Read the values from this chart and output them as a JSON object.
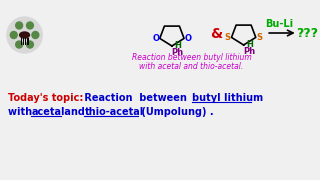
{
  "bg_color": "#f0f0f0",
  "title_color_red": "#cc0000",
  "title_color_blue": "#0000cc",
  "green_color": "#00aa00",
  "atom_O_color": "#0000ff",
  "atom_S_color": "#cc6600",
  "atom_H_color": "#006600",
  "atom_Ph_color": "#800080",
  "subtitle_color": "#cc00cc",
  "ampersand_color": "#cc0000",
  "subtitle_line1": "Reaction between butyl lithium",
  "subtitle_line2": "with acetal and thio-acetal.",
  "todays_topic": "Today's topic:",
  "reaction_between": " Reaction  between  ",
  "butyl_lithium": "butyl lithium",
  "with_text": "with ",
  "acetal_text": "acetal",
  "and_text": " and ",
  "thioacetal_text": "thio-acetal",
  "umpolung_text": " (Umpolung) .",
  "buli_text": "Bu-Li",
  "question_text": "???",
  "ampersand_text": "&"
}
